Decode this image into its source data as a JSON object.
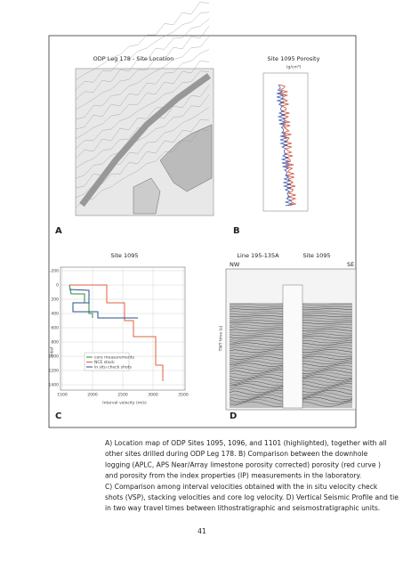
{
  "figure": {
    "panel_a": {
      "title": "ODP Leg 178 - Site Location",
      "label": "A"
    },
    "panel_b": {
      "title": "Site 1095 Porosity",
      "unit": "(g/cm³)",
      "label": "B"
    },
    "panel_c": {
      "title": "Site 1095",
      "label": "C",
      "y_axis_label": "mbsf",
      "x_axis_label": "Interval velocity (m/s)",
      "yticks": [
        "-200",
        "0",
        "200",
        "400",
        "600",
        "800",
        "1000",
        "1200",
        "1400"
      ],
      "xticks": [
        "1500",
        "2000",
        "2500",
        "3000",
        "3500"
      ],
      "legend": [
        "core measurements",
        "NCE stack",
        "in situ check shots"
      ]
    },
    "panel_d": {
      "title": "Line 195-135A",
      "site": "Site 1095",
      "left": "NW",
      "right": "SE",
      "y_axis_label": "TWT time (s)",
      "label": "D"
    }
  },
  "caption": [
    "A) Location map of ODP Sites 1095, 1096, and 1101 (highlighted), together with all",
    "other sites drilled during ODP Leg 178. B) Comparison between the downhole",
    "logging (APLC, APS Near/Array limestone porosity corrected) porosity (red curve )",
    "and porosity from the index properties (IP) measurements in the laboratory.",
    "C) Comparison among interval velocities obtained with the in situ velocity check",
    "shots (VSP), stacking velocities and core log velocity. D) Vertical Seismic Profile and tie",
    "in two way travel times between lithostratigraphic and seismostratigraphic units."
  ],
  "page_number": "41"
}
